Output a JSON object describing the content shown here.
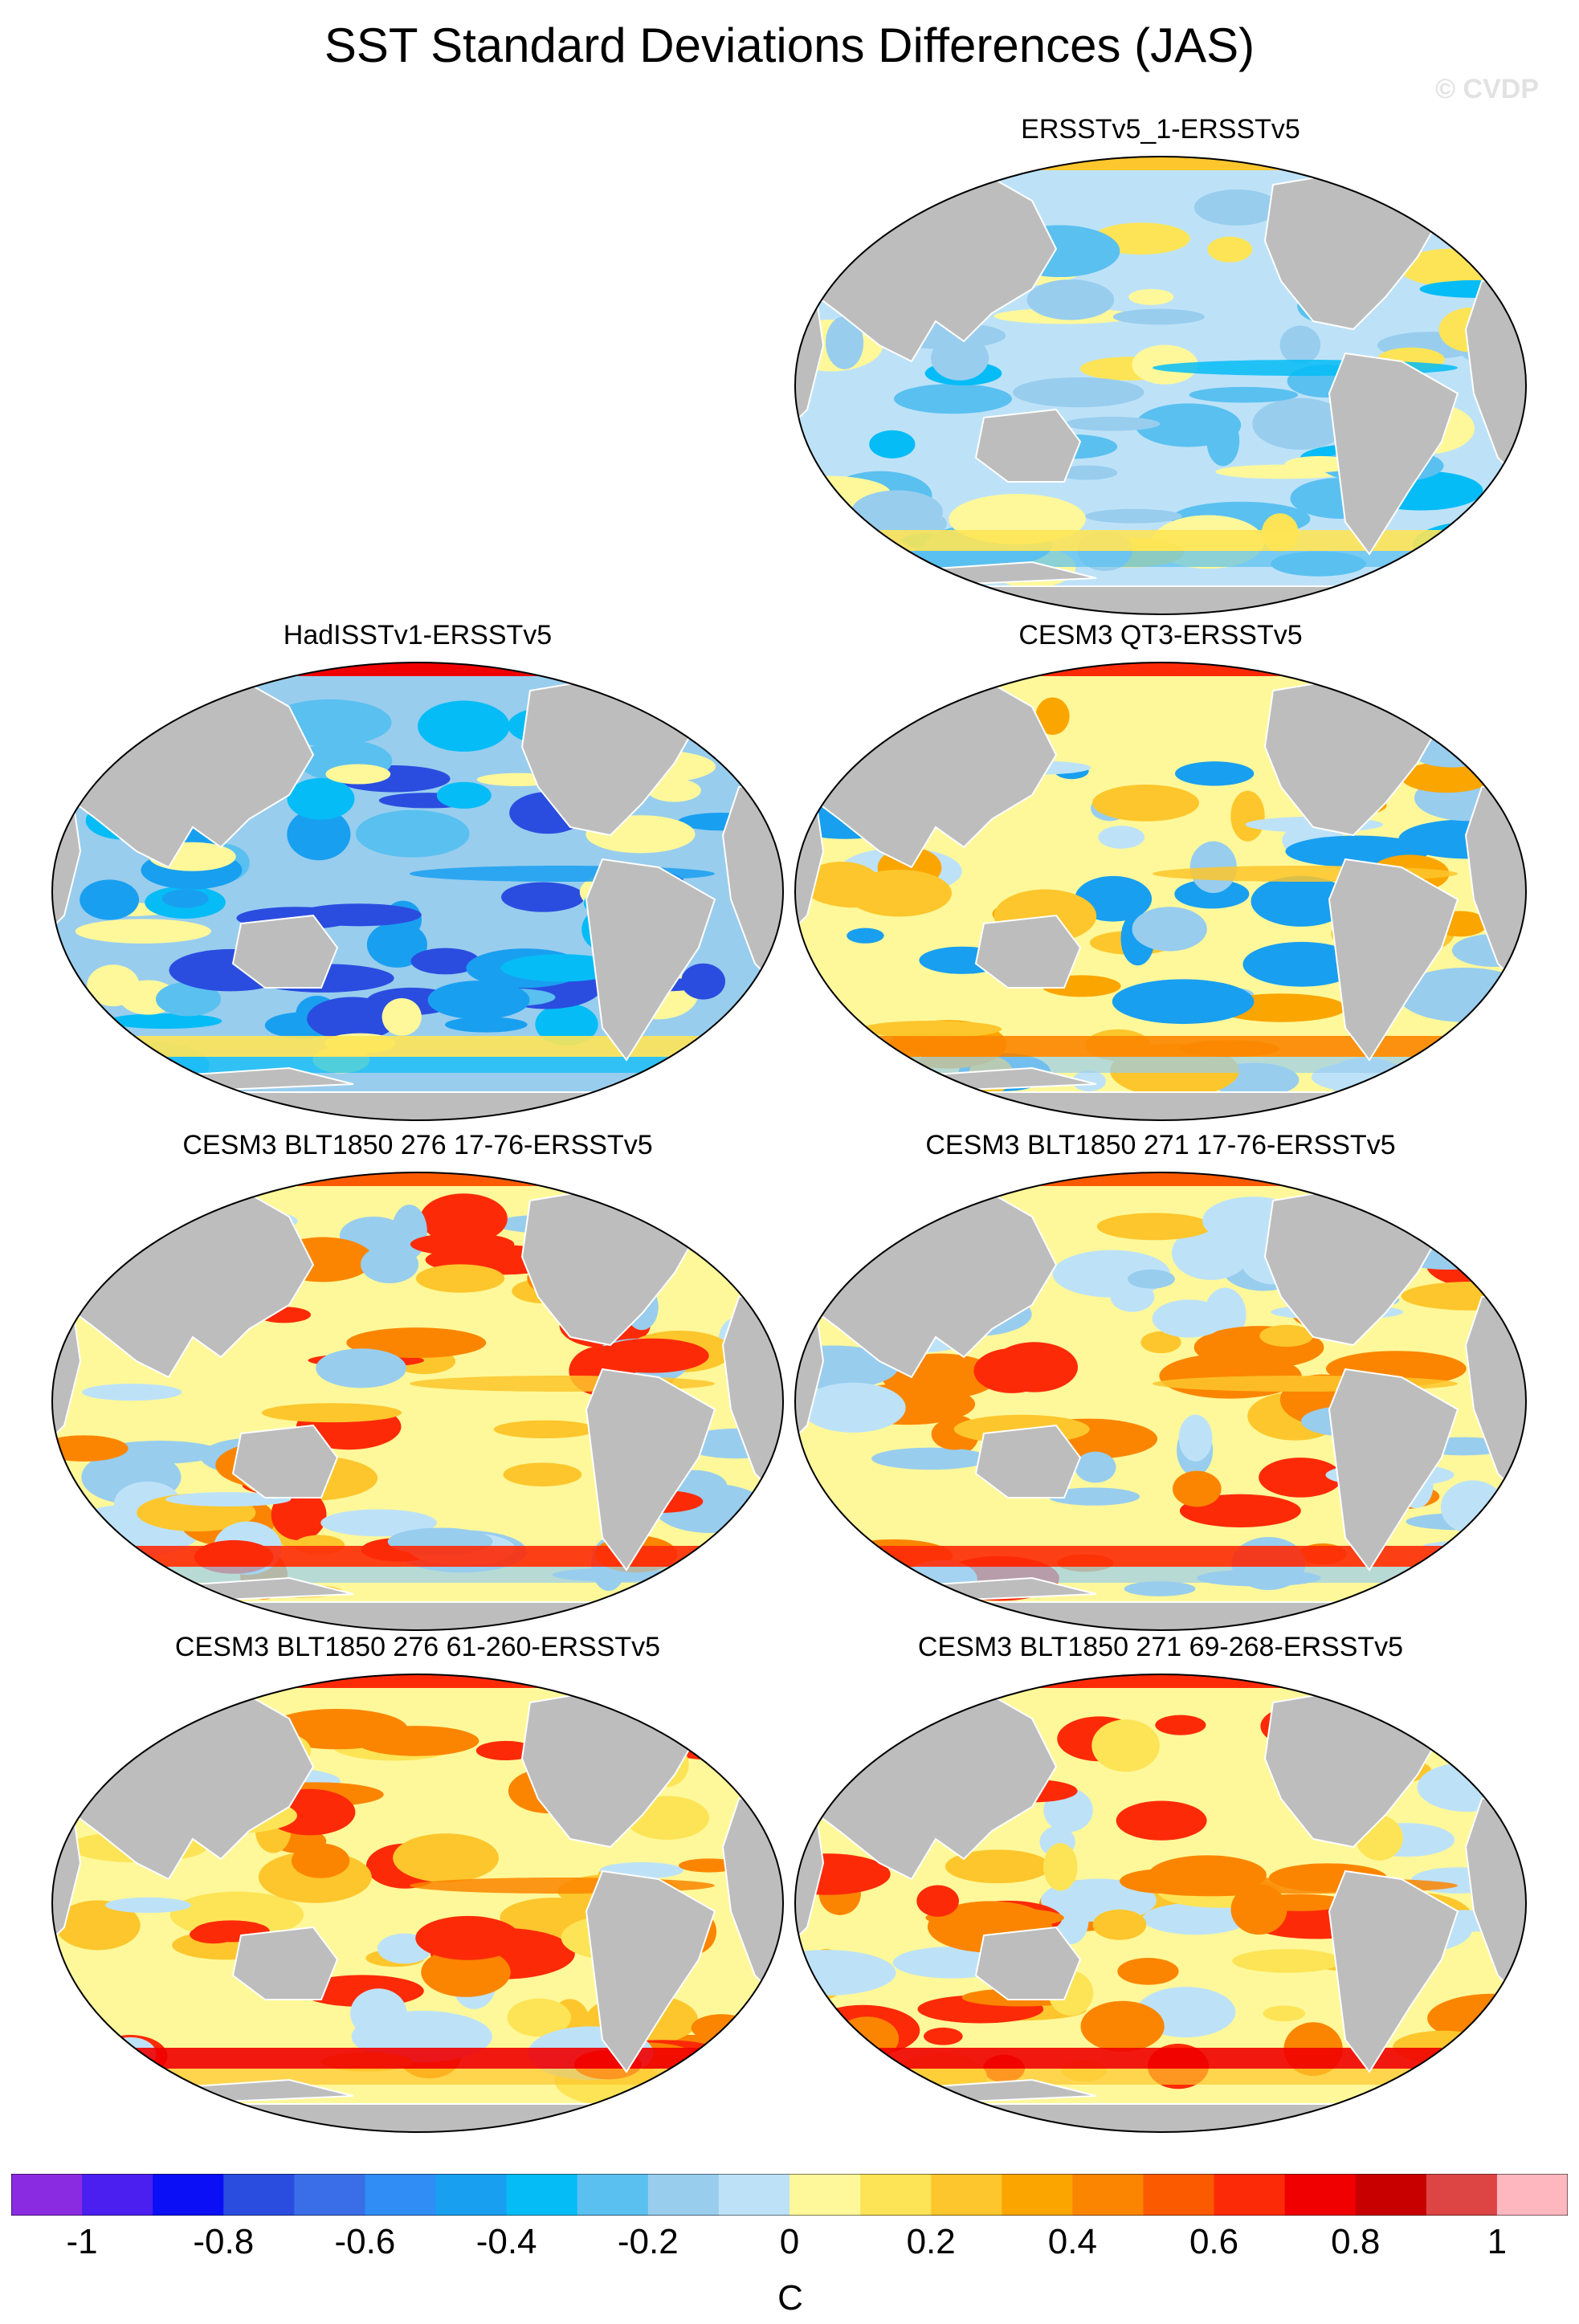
{
  "title": "SST Standard Deviations Differences (JAS)",
  "watermark": "© CVDP",
  "panels": [
    {
      "title": "ERSSTv5_1-ERSSTv5",
      "pattern": "cool"
    },
    {
      "title": "HadISSTv1-ERSSTv5",
      "pattern": "cool-strong"
    },
    {
      "title": "CESM3 QT3-ERSSTv5",
      "pattern": "mixed"
    },
    {
      "title": "CESM3 BLT1850 276 17-76-ERSSTv5",
      "pattern": "warm"
    },
    {
      "title": "CESM3 BLT1850 271 17-76-ERSSTv5",
      "pattern": "warm"
    },
    {
      "title": "CESM3 BLT1850 276 61-260-ERSSTv5",
      "pattern": "warm-strong"
    },
    {
      "title": "CESM3 BLT1850 271 69-268-ERSSTv5",
      "pattern": "warm-strong"
    }
  ],
  "colorbar": {
    "units": "C",
    "levels": [
      -1.1,
      -1.0,
      -0.9,
      -0.8,
      -0.7,
      -0.6,
      -0.5,
      -0.4,
      -0.3,
      -0.2,
      -0.1,
      0.0,
      0.1,
      0.2,
      0.3,
      0.4,
      0.5,
      0.6,
      0.7,
      0.8,
      0.9,
      1.0,
      1.1
    ],
    "colors": [
      "#8a2be2",
      "#4b1ff0",
      "#0a0ff5",
      "#2a4de0",
      "#3a6ee8",
      "#2f8df5",
      "#199ff0",
      "#05bcf6",
      "#5ac0f0",
      "#98cdee",
      "#bde2f8",
      "#fff89a",
      "#fde456",
      "#fdc62c",
      "#fba500",
      "#fb8500",
      "#fb5a00",
      "#fd2a08",
      "#f00000",
      "#c80000",
      "#dd4444",
      "#ffb7bf"
    ],
    "tick_labels": [
      "-1",
      "-0.8",
      "-0.6",
      "-0.4",
      "-0.2",
      "0",
      "0.2",
      "0.4",
      "0.6",
      "0.8",
      "1"
    ]
  }
}
